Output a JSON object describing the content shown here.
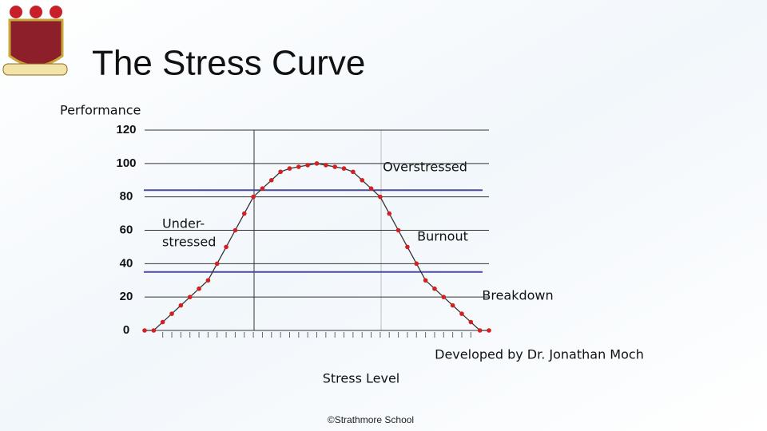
{
  "chart_data": {
    "type": "line",
    "title": "The Stress Curve",
    "y_label": "Performance",
    "x_label": "Stress Level",
    "annotations": [
      "Overstressed",
      "Under-",
      "stressed",
      "Burnout",
      "Breakdown"
    ],
    "credit": "Developed by Dr. Jonathan Moch",
    "footer": "©Strathmore School",
    "categories": [
      null,
      null,
      null,
      null,
      null,
      null,
      null,
      null,
      null,
      null,
      null,
      null,
      null,
      null,
      null,
      null,
      null,
      null,
      null,
      null,
      null,
      null,
      null,
      null,
      null,
      null,
      null,
      null,
      null,
      null,
      null,
      null,
      null,
      null,
      null,
      null,
      null,
      null,
      null
    ],
    "series": [
      {
        "name": null,
        "color": "#d42020",
        "line_color": "#333333",
        "values": [
          0,
          0,
          5,
          10,
          15,
          20,
          25,
          30,
          40,
          50,
          60,
          70,
          80,
          85,
          90,
          95,
          97,
          98,
          99,
          100,
          99,
          98,
          97,
          95,
          90,
          85,
          80,
          70,
          60,
          50,
          40,
          30,
          25,
          20,
          15,
          10,
          5,
          0,
          0
        ]
      }
    ],
    "reference_lines": [
      84,
      35
    ],
    "reference_color": "#4a4a9a",
    "ylim": [
      0,
      120
    ],
    "yticks": [
      0,
      20,
      40,
      60,
      80,
      100,
      120
    ],
    "grid": true
  }
}
